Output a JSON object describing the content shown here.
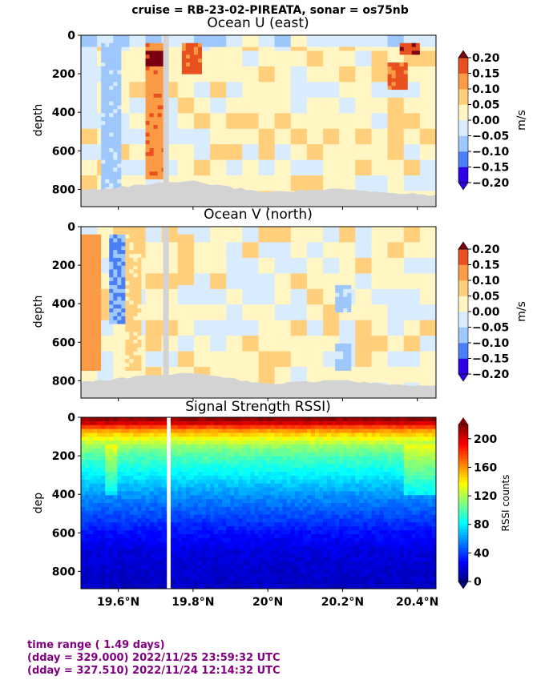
{
  "suptitle": "cruise = RB-23-02-PIREATA,  sonar = os75nb",
  "colors": {
    "text": "#000000",
    "footer": "#800080",
    "bathymetry": "#d3d3d3",
    "gap": "#d3d3d3",
    "diverging_scale": [
      "#2e00e6",
      "#1e3ff3",
      "#4a7ef7",
      "#9ec7fb",
      "#d8ecfe",
      "#fff6c4",
      "#ffcf7c",
      "#fb9b45",
      "#e85020",
      "#c0140e",
      "#7a0010"
    ],
    "jet_scale": [
      "#00007f",
      "#0000ff",
      "#007fff",
      "#00ffff",
      "#7fff7f",
      "#ffff00",
      "#ff7f00",
      "#ff0000",
      "#7f0000"
    ]
  },
  "footer": {
    "line1": "time range ( 1.49 days)",
    "line2": "(dday = 329.000) 2022/11/25 23:59:32 UTC",
    "line3": "(dday = 327.510) 2022/11/24 12:14:32 UTC"
  },
  "chart_data": [
    {
      "type": "heatmap",
      "title": "Ocean U (east)",
      "xlabel": "",
      "ylabel": "depth",
      "x_ticks": [],
      "y_ticks": [
        "0",
        "200",
        "400",
        "600",
        "800"
      ],
      "xlim": [
        19.5,
        20.45
      ],
      "ylim": [
        890,
        0
      ],
      "colorbar_label": "m/s",
      "colorbar_ticks": [
        "0.20",
        "0.15",
        "0.10",
        "0.05",
        "0.00",
        "−0.05",
        "−0.10",
        "−0.15",
        "−0.20"
      ],
      "colorbar_range": [
        -0.2,
        0.2
      ],
      "colorbar_extend": "both",
      "features": [
        {
          "lat": 19.58,
          "depth_range": [
            50,
            800
          ],
          "value": -0.06
        },
        {
          "lat": 19.7,
          "depth_range": [
            50,
            750
          ],
          "value": 0.14
        },
        {
          "lat": 19.7,
          "depth_range": [
            80,
            160
          ],
          "value": 0.21
        },
        {
          "lat": 19.8,
          "depth_range": [
            50,
            200
          ],
          "value": 0.16
        },
        {
          "lat": 20.35,
          "depth_range": [
            150,
            280
          ],
          "value": 0.16
        },
        {
          "lat": 20.38,
          "depth_range": [
            50,
            110
          ],
          "value": 0.2
        }
      ],
      "data_gap_lat": [
        19.72,
        19.735
      ],
      "bathymetry_depth": [
        [
          19.5,
          805
        ],
        [
          19.6,
          790
        ],
        [
          19.7,
          770
        ],
        [
          19.8,
          760
        ],
        [
          19.9,
          790
        ],
        [
          20.0,
          815
        ],
        [
          20.1,
          805
        ],
        [
          20.2,
          800
        ],
        [
          20.3,
          815
        ],
        [
          20.45,
          830
        ]
      ]
    },
    {
      "type": "heatmap",
      "title": "Ocean V (north)",
      "xlabel": "",
      "ylabel": "depth",
      "x_ticks": [],
      "y_ticks": [
        "0",
        "200",
        "400",
        "600",
        "800"
      ],
      "xlim": [
        19.5,
        20.45
      ],
      "ylim": [
        890,
        0
      ],
      "colorbar_label": "m/s",
      "colorbar_ticks": [
        "0.20",
        "0.15",
        "0.10",
        "0.05",
        "0.00",
        "−0.05",
        "−0.10",
        "−0.15",
        "−0.20"
      ],
      "colorbar_range": [
        -0.2,
        0.2
      ],
      "colorbar_extend": "both",
      "features": [
        {
          "lat": 19.53,
          "depth_range": [
            50,
            750
          ],
          "value": 0.12
        },
        {
          "lat": 19.6,
          "depth_range": [
            50,
            500
          ],
          "value": -0.1
        },
        {
          "lat": 19.64,
          "depth_range": [
            50,
            750
          ],
          "value": 0.06
        },
        {
          "lat": 19.78,
          "depth_range": [
            50,
            300
          ],
          "value": 0.08
        },
        {
          "lat": 20.2,
          "depth_range": [
            300,
            450
          ],
          "value": -0.06
        },
        {
          "lat": 20.2,
          "depth_range": [
            600,
            750
          ],
          "value": -0.06
        }
      ],
      "data_gap_lat": [
        19.72,
        19.735
      ],
      "bathymetry_depth": [
        [
          19.5,
          805
        ],
        [
          19.6,
          790
        ],
        [
          19.7,
          770
        ],
        [
          19.8,
          760
        ],
        [
          19.9,
          790
        ],
        [
          20.0,
          815
        ],
        [
          20.1,
          805
        ],
        [
          20.2,
          800
        ],
        [
          20.3,
          815
        ],
        [
          20.45,
          830
        ]
      ]
    },
    {
      "type": "heatmap",
      "title": "Signal Strength RSSI)",
      "xlabel": "",
      "ylabel": "dep",
      "x_ticks": [
        "19.6°N",
        "19.8°N",
        "20°N",
        "20.2°N",
        "20.4°N"
      ],
      "x_tick_values": [
        19.6,
        19.8,
        20.0,
        20.2,
        20.4
      ],
      "y_ticks": [
        "0",
        "200",
        "400",
        "600",
        "800"
      ],
      "xlim": [
        19.5,
        20.45
      ],
      "ylim": [
        890,
        0
      ],
      "colorbar_label": "RSSI counts",
      "colorbar_ticks": [
        "200",
        "160",
        "120",
        "80",
        "40",
        "0"
      ],
      "colorbar_range": [
        0,
        220
      ],
      "colorbar_extend": "min",
      "profile": [
        [
          20,
          215
        ],
        [
          40,
          190
        ],
        [
          70,
          160
        ],
        [
          100,
          140
        ],
        [
          150,
          115
        ],
        [
          200,
          100
        ],
        [
          300,
          80
        ],
        [
          400,
          60
        ],
        [
          500,
          45
        ],
        [
          600,
          30
        ],
        [
          700,
          20
        ],
        [
          890,
          14
        ]
      ],
      "data_gap_lat": [
        19.73,
        19.74
      ]
    }
  ]
}
